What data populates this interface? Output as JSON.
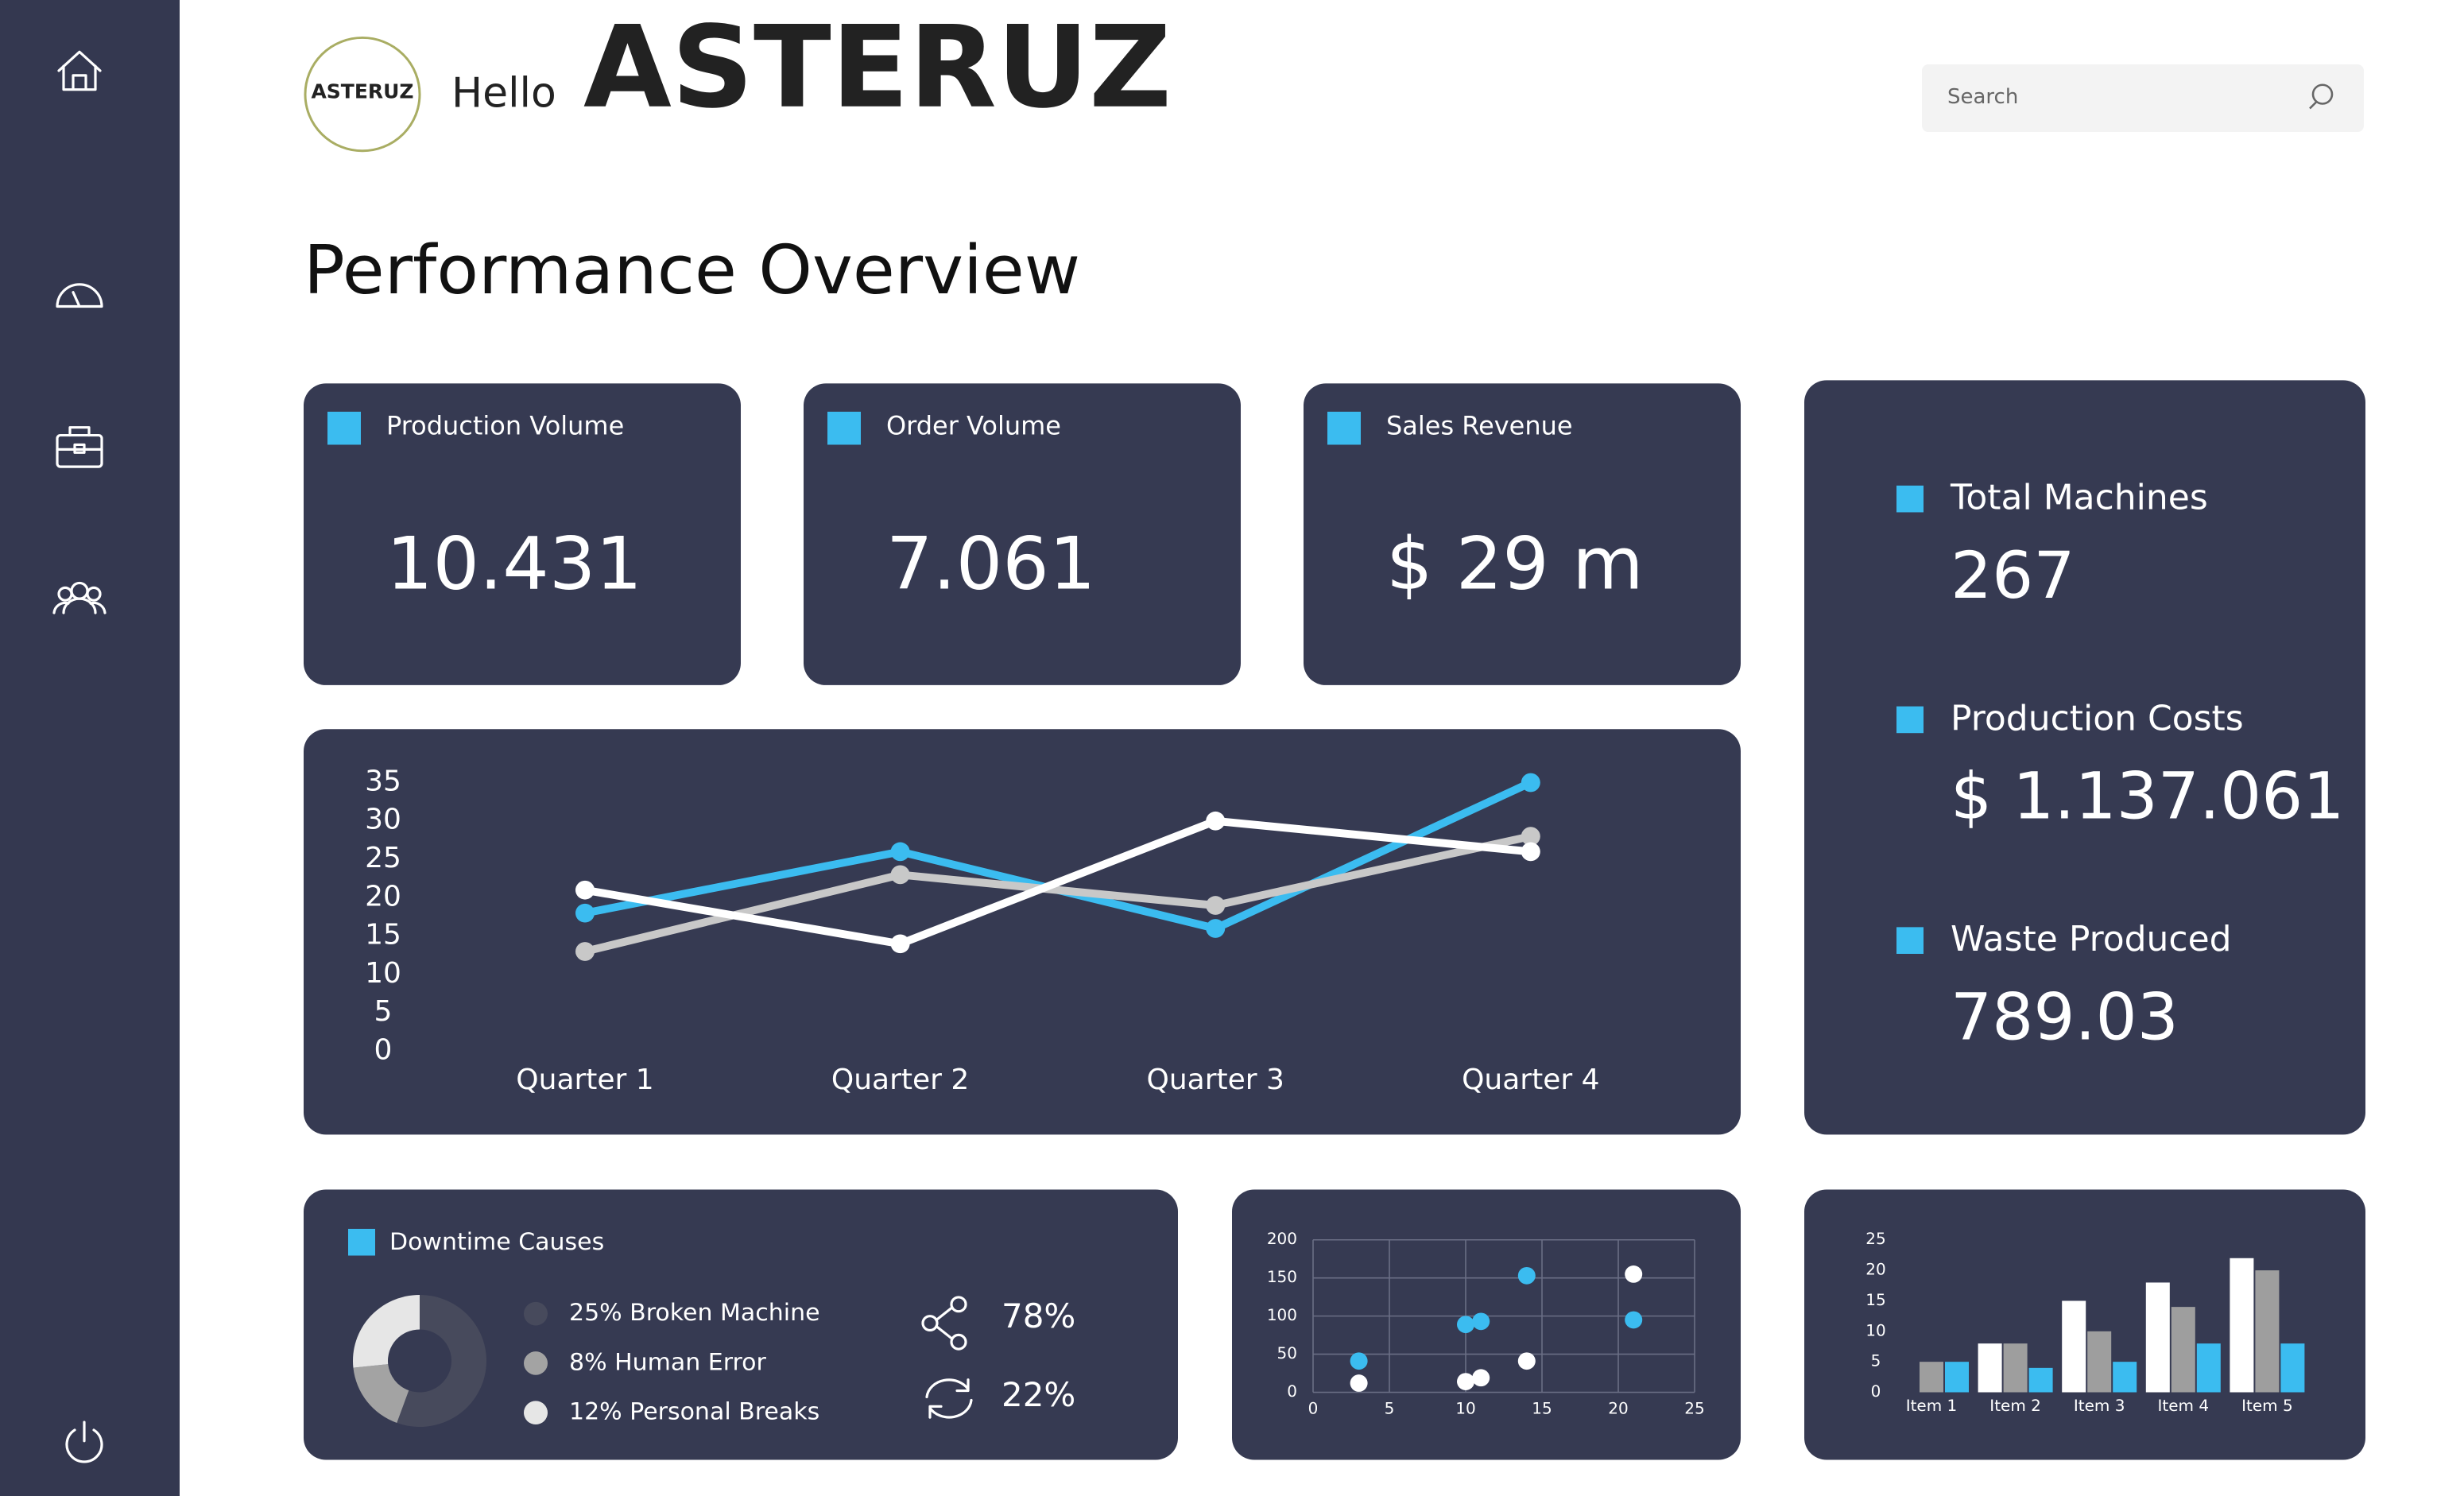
{
  "header": {
    "logo_text": "ASTERUZ",
    "greeting": "Hello",
    "brand": "ASTERUZ",
    "search_placeholder": "Search"
  },
  "page_title": "Performance Overview",
  "kpis": [
    {
      "label": "Production Volume",
      "value": "10.431"
    },
    {
      "label": "Order Volume",
      "value": "7.061"
    },
    {
      "label": "Sales Revenue",
      "value": "$ 29 m"
    }
  ],
  "summary": [
    {
      "label": "Total Machines",
      "value": "267"
    },
    {
      "label": "Production Costs",
      "value": "$ 1.137.061"
    },
    {
      "label": "Waste Produced",
      "value": "789.03"
    }
  ],
  "downtime_stats": [
    "78%",
    "22%"
  ],
  "chart_data": [
    {
      "type": "line",
      "categories": [
        "Quarter 1",
        "Quarter 2",
        "Quarter 3",
        "Quarter 4"
      ],
      "ylim": [
        0,
        35
      ],
      "yticks": [
        0,
        5,
        10,
        15,
        20,
        25,
        30,
        35
      ],
      "series": [
        {
          "color": "#3bbcf0",
          "values": [
            18,
            26,
            16,
            35
          ]
        },
        {
          "color": "#c8c8c8",
          "values": [
            13,
            23,
            19,
            28
          ]
        },
        {
          "color": "#ffffff",
          "values": [
            21,
            14,
            30,
            26
          ]
        }
      ]
    },
    {
      "type": "donut",
      "title": "Downtime Causes",
      "categories": [
        "25% Broken Machine",
        "8% Human Error",
        "12% Personal Breaks"
      ],
      "values": [
        25,
        8,
        12
      ],
      "colors": [
        "#474a5c",
        "#a3a3a3",
        "#e6e6e6"
      ]
    },
    {
      "type": "scatter",
      "xlim": [
        0,
        25
      ],
      "xticks": [
        0,
        5,
        10,
        15,
        20,
        25
      ],
      "ylim": [
        0,
        200
      ],
      "yticks": [
        0,
        50,
        100,
        150,
        200
      ],
      "grid": true,
      "series": [
        {
          "color": "#3bbcf0",
          "x": [
            3,
            10,
            11,
            14,
            21
          ],
          "values": [
            41,
            89,
            93,
            153,
            95
          ]
        },
        {
          "color": "#ffffff",
          "x": [
            3,
            10,
            11,
            14,
            21
          ],
          "values": [
            12,
            14,
            19,
            41,
            155
          ]
        }
      ]
    },
    {
      "type": "bar",
      "categories": [
        "Item 1",
        "Item 2",
        "Item 3",
        "Item 4",
        "Item 5"
      ],
      "ylim": [
        0,
        25
      ],
      "yticks": [
        0,
        5,
        10,
        15,
        20,
        25
      ],
      "series": [
        {
          "color": "#ffffff",
          "values": [
            null,
            8,
            15,
            18,
            22
          ]
        },
        {
          "color": "#9e9e9e",
          "values": [
            5,
            8,
            10,
            14,
            20
          ]
        },
        {
          "color": "#3bbcf0",
          "values": [
            5,
            4,
            5,
            8,
            8
          ]
        }
      ]
    }
  ]
}
